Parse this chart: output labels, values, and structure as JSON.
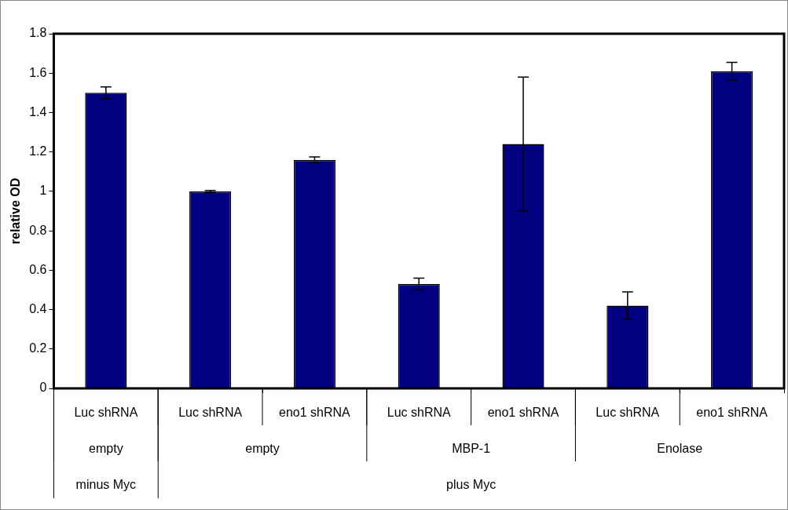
{
  "chart_data": {
    "type": "bar",
    "ylabel": "relative OD",
    "categories": [
      "Luc shRNA",
      "Luc shRNA",
      "eno1 shRNA",
      "Luc shRNA",
      "eno1 shRNA",
      "Luc shRNA",
      "eno1 shRNA"
    ],
    "values": [
      1.5,
      1.0,
      1.16,
      0.53,
      1.24,
      0.42,
      1.61
    ],
    "errors": [
      0.03,
      0.005,
      0.015,
      0.03,
      0.34,
      0.07,
      0.045
    ],
    "color": "#000080",
    "ylim": [
      0,
      1.8
    ],
    "yticks": [
      0,
      0.2,
      0.4,
      0.6,
      0.8,
      1,
      1.2,
      1.4,
      1.6,
      1.8
    ],
    "grid": false,
    "legend": false,
    "annotations": [
      "empty",
      "empty",
      "MBP-1",
      "Enolase",
      "minus Myc",
      "plus Myc"
    ]
  }
}
